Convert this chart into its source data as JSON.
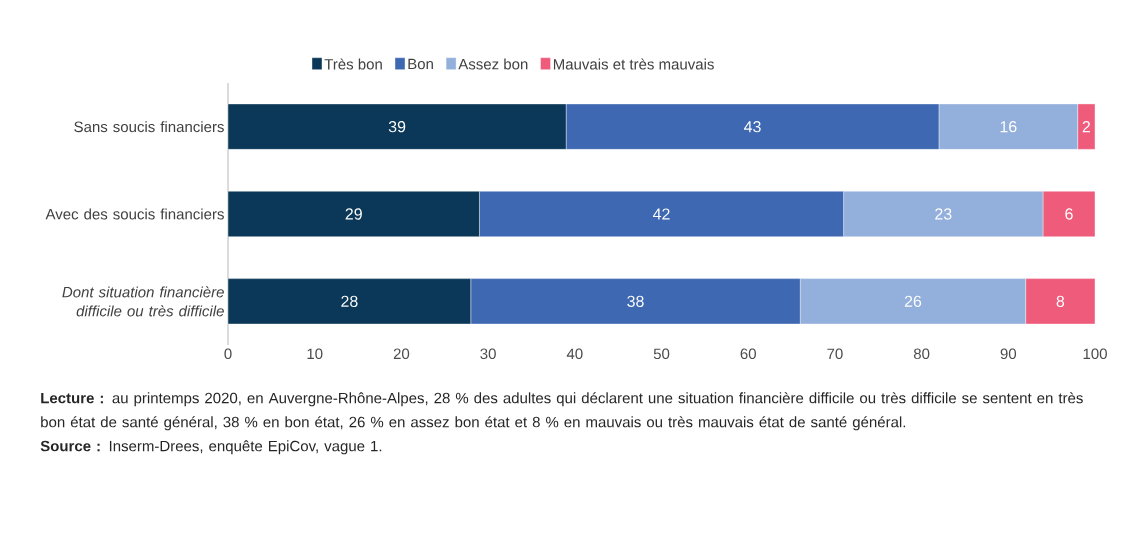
{
  "chart_data": {
    "type": "bar",
    "orientation": "horizontal",
    "stacked": true,
    "data_labels": true,
    "legend": "top",
    "categories": [
      "Sans soucis financiers",
      "Avec des soucis financiers",
      "*Dont situation financière difficile ou très difficile*"
    ],
    "series": [
      {
        "name": "Très bon",
        "color": "#0b3858",
        "values": [
          39,
          29,
          28
        ]
      },
      {
        "name": "Bon",
        "color": "#3e68b2",
        "values": [
          43,
          42,
          38
        ]
      },
      {
        "name": "Assez bon",
        "color": "#93afdc",
        "values": [
          16,
          23,
          26
        ]
      },
      {
        "name": "Mauvais et très mauvais",
        "color": "#ee5b7b",
        "values": [
          2,
          6,
          8
        ]
      }
    ],
    "xlim": [
      0,
      100
    ],
    "xticks": [
      0,
      10,
      20,
      30,
      40,
      50,
      60,
      70,
      80,
      90,
      100
    ],
    "annotations": [
      "**Lecture :** au printemps 2020, en Auvergne-Rhône-Alpes, 28 % des adultes qui déclarent une situation financière difficile ou très difficile se sentent en très bon état de santé général, 38 % en bon état, 26 % en assez bon état et 8 % en mauvais ou très mauvais état de santé général.",
      "**Source :** Inserm-Drees, enquête EpiCov, vague 1."
    ]
  }
}
